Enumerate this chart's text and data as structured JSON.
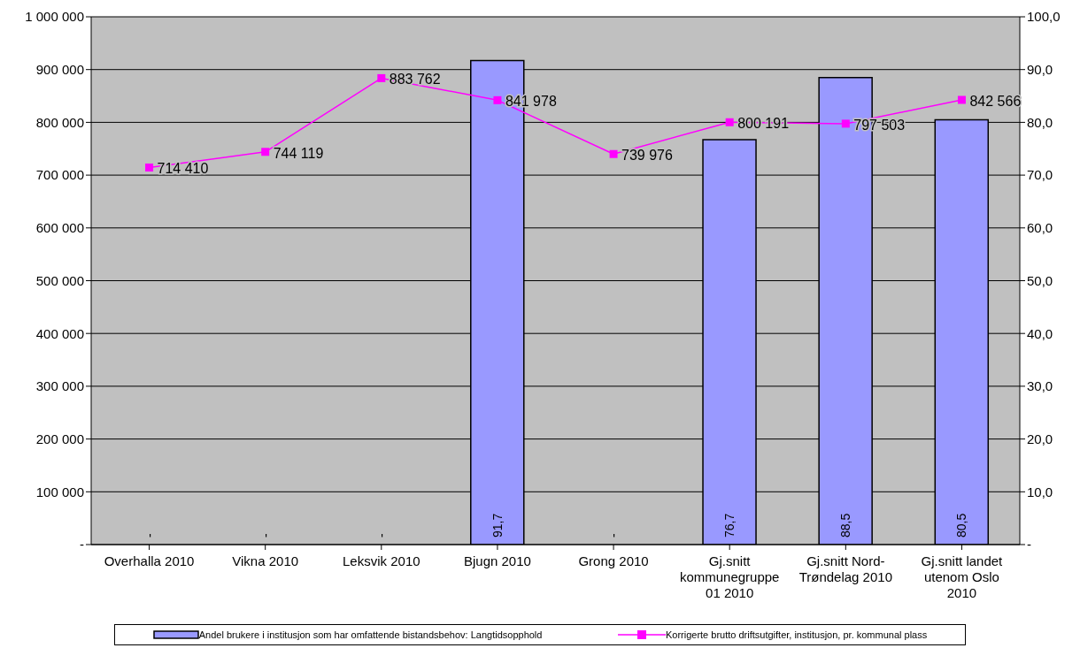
{
  "chart_data": {
    "type": "bar",
    "categories": [
      "Overhalla 2010",
      "Vikna 2010",
      "Leksvik 2010",
      "Bjugn 2010",
      "Grong 2010",
      "Gj.snitt kommunegruppe 01 2010",
      "Gj.snitt Nord-Trøndelag 2010",
      "Gj.snitt landet utenom Oslo 2010"
    ],
    "series": [
      {
        "name": "Andel brukere i institusjon som har omfattende bistandsbehov: Langtidsopphold",
        "axis": "y2",
        "color": "#9999ff",
        "values": [
          0,
          0,
          0,
          91.7,
          0,
          76.7,
          88.5,
          80.5
        ],
        "value_labels": [
          "-",
          "-",
          "-",
          "91,7",
          "-",
          "76,7",
          "88,5",
          "80,5"
        ]
      },
      {
        "name": "Korrigerte brutto driftsutgifter, institusjon, pr. kommunal plass",
        "type": "line",
        "color": "#ff00ff",
        "marker": "square",
        "values": [
          714410,
          744119,
          883762,
          841978,
          739976,
          800191,
          797503,
          842566
        ],
        "value_labels": [
          "714 410",
          "744 119",
          "883 762",
          "841 978",
          "739 976",
          "800 191",
          "797 503",
          "842 566"
        ]
      }
    ],
    "ylim": [
      0,
      1000000
    ],
    "yticks": [
      {
        "value": 0,
        "label": "-"
      },
      {
        "value": 100000,
        "label": "100 000"
      },
      {
        "value": 200000,
        "label": "200 000"
      },
      {
        "value": 300000,
        "label": "300 000"
      },
      {
        "value": 400000,
        "label": "400 000"
      },
      {
        "value": 500000,
        "label": "500 000"
      },
      {
        "value": 600000,
        "label": "600 000"
      },
      {
        "value": 700000,
        "label": "700 000"
      },
      {
        "value": 800000,
        "label": "800 000"
      },
      {
        "value": 900000,
        "label": "900 000"
      },
      {
        "value": 1000000,
        "label": "1 000 000"
      }
    ],
    "y2lim": [
      0,
      100
    ],
    "y2ticks": [
      {
        "value": 0,
        "label": "-"
      },
      {
        "value": 10,
        "label": "10,0"
      },
      {
        "value": 20,
        "label": "20,0"
      },
      {
        "value": 30,
        "label": "30,0"
      },
      {
        "value": 40,
        "label": "40,0"
      },
      {
        "value": 50,
        "label": "50,0"
      },
      {
        "value": 60,
        "label": "60,0"
      },
      {
        "value": 70,
        "label": "70,0"
      },
      {
        "value": 80,
        "label": "80,0"
      },
      {
        "value": 90,
        "label": "90,0"
      },
      {
        "value": 100,
        "label": "100,0"
      }
    ],
    "grid": "y",
    "legend": "bottom"
  }
}
